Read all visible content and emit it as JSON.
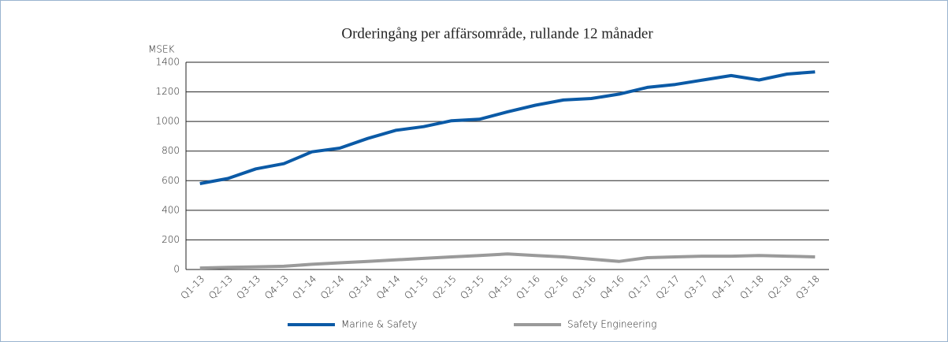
{
  "chart_data": {
    "type": "line",
    "title": "Orderingång per affärsområde, rullande 12 månader",
    "y_label": "MSEK",
    "categories": [
      "Q1-13",
      "Q2-13",
      "Q3-13",
      "Q4-13",
      "Q1-14",
      "Q2-14",
      "Q3-14",
      "Q4-14",
      "Q1-15",
      "Q2-15",
      "Q3-15",
      "Q4-15",
      "Q1-16",
      "Q2-16",
      "Q3-16",
      "Q4-16",
      "Q1-17",
      "Q2-17",
      "Q3-17",
      "Q4-17",
      "Q1-18",
      "Q2-18",
      "Q3-18"
    ],
    "series": [
      {
        "name": "Marine & Safety",
        "color": "#0b5aa6",
        "values": [
          580,
          615,
          680,
          715,
          795,
          820,
          885,
          940,
          965,
          1005,
          1015,
          1065,
          1110,
          1145,
          1155,
          1185,
          1230,
          1250,
          1280,
          1310,
          1280,
          1320,
          1335
        ]
      },
      {
        "name": "Safety Engineering",
        "color": "#9a9a9a",
        "values": [
          10,
          15,
          18,
          22,
          35,
          45,
          55,
          65,
          75,
          85,
          95,
          105,
          95,
          85,
          70,
          55,
          80,
          85,
          90,
          90,
          95,
          90,
          85
        ]
      }
    ],
    "ylim": [
      0,
      1400
    ],
    "yticks": [
      0,
      200,
      400,
      600,
      800,
      1000,
      1200,
      1400
    ],
    "grid": true
  }
}
